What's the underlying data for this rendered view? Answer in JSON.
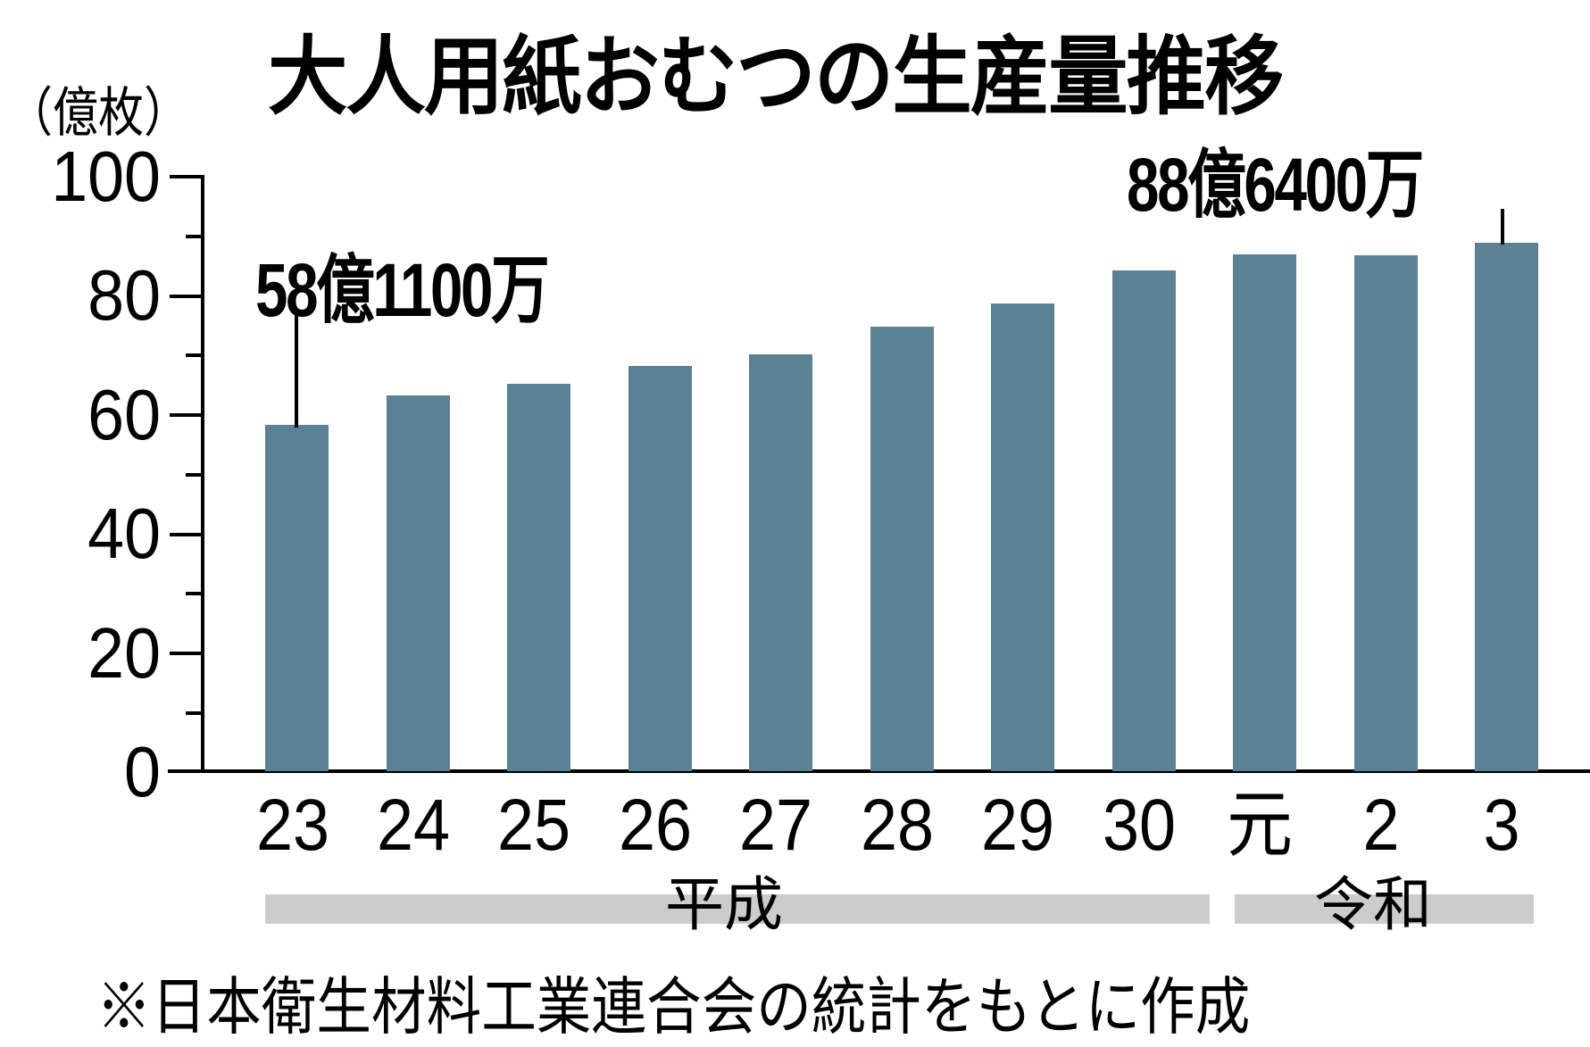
{
  "title": "大人用紙おむつの生産量推移",
  "unit_label": "（億枚）",
  "source_note": "※日本衛生材料工業連合会の統計をもとに作成",
  "colors": {
    "bar": "#5b8194",
    "era_band": "#cccccc",
    "axis": "#000000"
  },
  "annotations": {
    "first": "58億1100万",
    "last": "88億6400万"
  },
  "eras": [
    {
      "label": "平成"
    },
    {
      "label": "令和"
    }
  ],
  "y_ticks": [
    "100",
    "80",
    "60",
    "40",
    "20",
    "0"
  ],
  "x_labels": [
    "23",
    "24",
    "25",
    "26",
    "27",
    "28",
    "29",
    "30",
    "元",
    "2",
    "3"
  ],
  "chart_data": {
    "type": "bar",
    "title": "大人用紙おむつの生産量推移",
    "xlabel": "",
    "ylabel": "（億枚）",
    "ylim": [
      0,
      100
    ],
    "y_ticks": [
      0,
      20,
      40,
      60,
      80,
      100
    ],
    "grid": false,
    "legend": null,
    "categories": [
      "平成23",
      "平成24",
      "平成25",
      "平成26",
      "平成27",
      "平成28",
      "平成29",
      "平成30",
      "令和元",
      "令和2",
      "令和3"
    ],
    "tick_labels": [
      "23",
      "24",
      "25",
      "26",
      "27",
      "28",
      "29",
      "30",
      "元",
      "2",
      "3"
    ],
    "era_groups": [
      {
        "label": "平成",
        "from": "23",
        "to": "30"
      },
      {
        "label": "令和",
        "from": "元",
        "to": "3"
      }
    ],
    "values": [
      58.11,
      63.0,
      64.9,
      68.0,
      69.9,
      74.6,
      78.4,
      84.0,
      86.7,
      86.5,
      88.64
    ],
    "annotations": [
      {
        "category": "平成23",
        "text": "58億1100万"
      },
      {
        "category": "令和3",
        "text": "88億6400万"
      }
    ],
    "source": "※日本衛生材料工業連合会の統計をもとに作成"
  }
}
